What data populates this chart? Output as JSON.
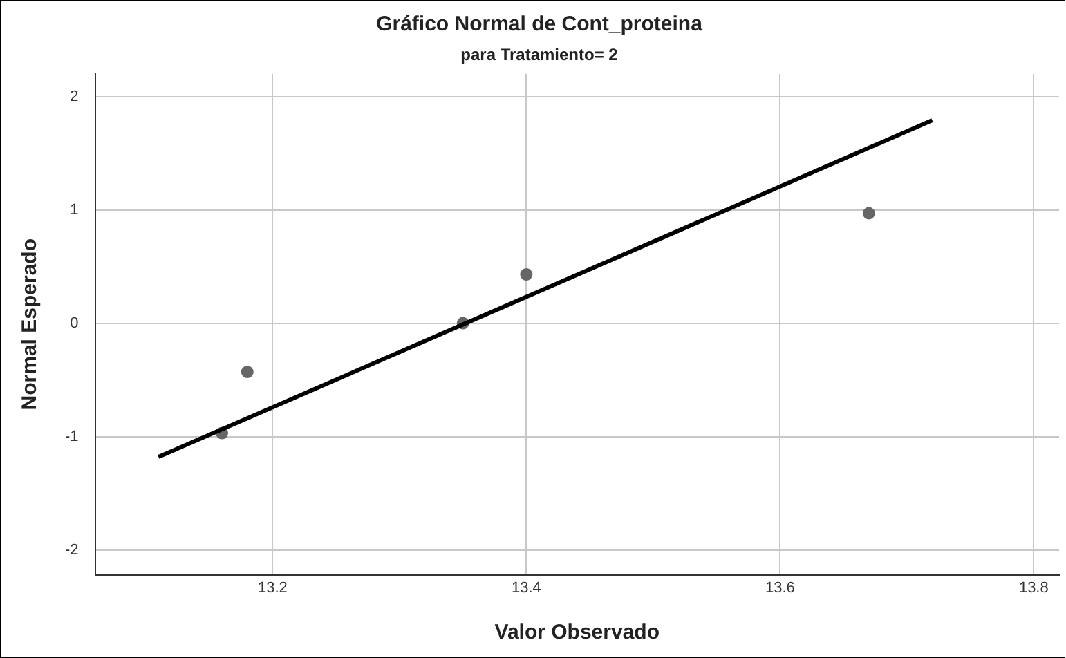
{
  "chart_data": {
    "type": "scatter",
    "title": "Gráfico Normal de Cont_proteina",
    "subtitle": "para Tratamiento= 2",
    "xlabel": "Valor Observado",
    "ylabel": "Normal Esperado",
    "series": [
      {
        "type": "scatter",
        "color": "#666666",
        "x": [
          13.16,
          13.18,
          13.35,
          13.4,
          13.67
        ],
        "values": [
          -0.97,
          -0.43,
          0,
          0.43,
          0.97
        ],
        "marker": "circle"
      },
      {
        "type": "line",
        "color": "#000000",
        "x": [
          13.11,
          13.72
        ],
        "values": [
          -1.18,
          1.79
        ],
        "marker": "none"
      }
    ],
    "xlim": [
      13.06,
      13.82
    ],
    "xticks": [
      13.2,
      13.4,
      13.6,
      13.8
    ],
    "ylim": [
      -2.22,
      2.2
    ],
    "yticks": [
      -2,
      -1,
      0,
      1,
      2
    ],
    "grid": true,
    "legend": false
  }
}
